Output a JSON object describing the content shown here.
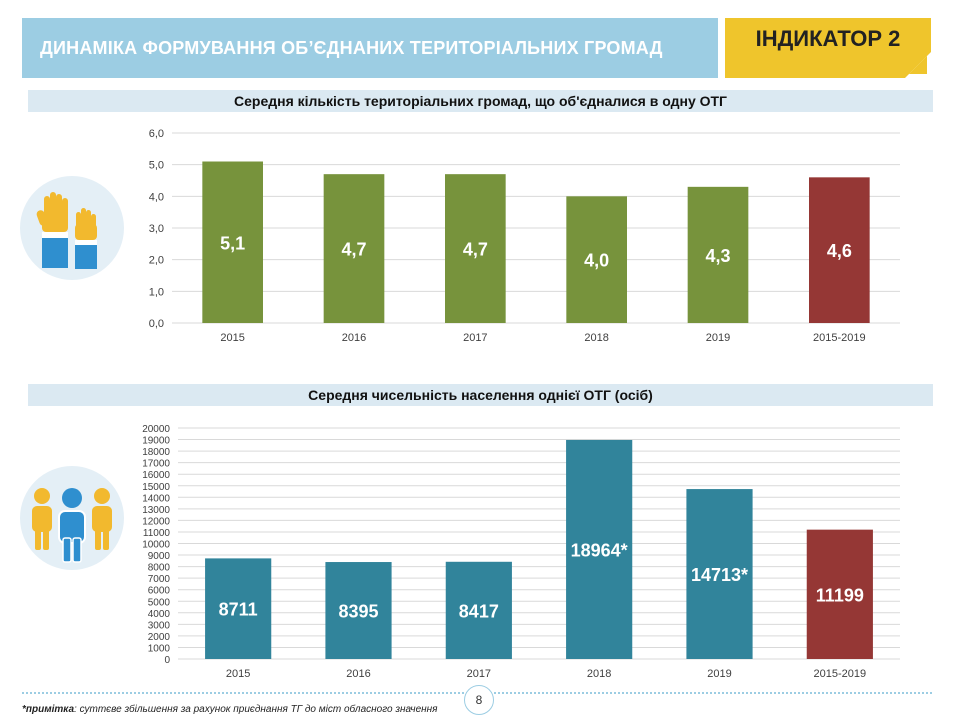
{
  "header": {
    "title": "ДИНАМІКА ФОРМУВАННЯ ОБ’ЄДНАНИХ ТЕРИТОРІАЛЬНИХ ГРОМАД",
    "indicator": "ІНДИКАТОР 2"
  },
  "colors": {
    "banner": "#9ccde3",
    "indicator": "#efc52c",
    "green": "#77933c",
    "teal": "#31849b",
    "red": "#953735"
  },
  "icons": {
    "top": "raised-hands-icon",
    "bottom": "people-group-icon"
  },
  "chart_data": [
    {
      "type": "bar",
      "title": "Середня кількість територіальних громад, що об'єдналися в одну ОТГ",
      "categories": [
        "2015",
        "2016",
        "2017",
        "2018",
        "2019",
        "2015-2019"
      ],
      "values": [
        5.1,
        4.7,
        4.7,
        4.0,
        4.3,
        4.6
      ],
      "labels": [
        "5,1",
        "4,7",
        "4,7",
        "4,0",
        "4,3",
        "4,6"
      ],
      "ylim": [
        0,
        6
      ],
      "yticks": [
        "0,0",
        "1,0",
        "2,0",
        "3,0",
        "4,0",
        "5,0",
        "6,0"
      ],
      "xlabel": "",
      "ylabel": "",
      "grid": true
    },
    {
      "type": "bar",
      "title": "Середня чисельність населення однієї ОТГ (осіб)",
      "categories": [
        "2015",
        "2016",
        "2017",
        "2018",
        "2019",
        "2015-2019"
      ],
      "values": [
        8711,
        8395,
        8417,
        18964,
        14713,
        11199
      ],
      "labels": [
        "8711",
        "8395",
        "8417",
        "18964*",
        "14713*",
        "11199"
      ],
      "ylim": [
        0,
        20000
      ],
      "yticks": [
        "0",
        "1000",
        "2000",
        "3000",
        "4000",
        "5000",
        "6000",
        "7000",
        "8000",
        "9000",
        "10000",
        "11000",
        "12000",
        "13000",
        "14000",
        "15000",
        "16000",
        "17000",
        "18000",
        "19000",
        "20000"
      ],
      "xlabel": "",
      "ylabel": "",
      "grid": true
    }
  ],
  "footer": {
    "note_prefix": "*примітка",
    "note_text": ": суттєве збільшення за рахунок приєднання ТГ до міст обласного значення",
    "page": "8"
  }
}
